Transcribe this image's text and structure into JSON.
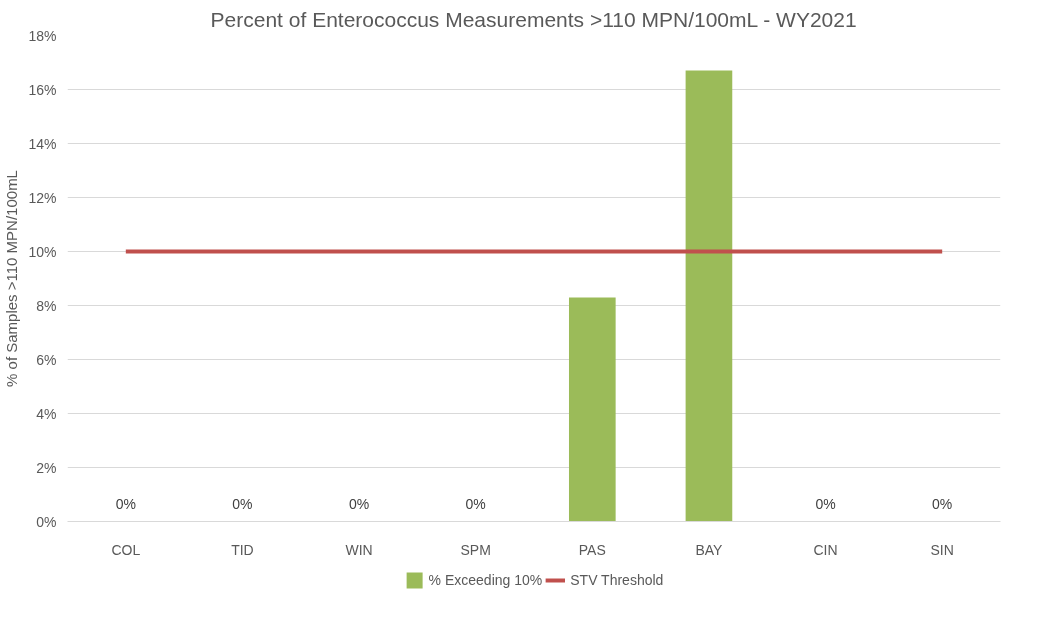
{
  "chart_data": {
    "type": "bar",
    "title": "Percent of Enterococcus Measurements >110 MPN/100mL - WY2021",
    "ylabel": "% of Samples >110 MPN/100mL",
    "categories": [
      "COL",
      "TID",
      "WIN",
      "SPM",
      "PAS",
      "BAY",
      "CIN",
      "SIN"
    ],
    "series": [
      {
        "name": "% Exceeding 10%",
        "color": "#9bbb59",
        "values": [
          0,
          0,
          0,
          0,
          8.3,
          16.7,
          0,
          0
        ],
        "value_labels": [
          "0%",
          "0%",
          "0%",
          "0%",
          null,
          null,
          "0%",
          "0%"
        ]
      },
      {
        "name": "STV Threshold",
        "type": "line",
        "color": "#c0504d",
        "values": [
          10,
          10,
          10,
          10,
          10,
          10,
          10,
          10
        ]
      }
    ],
    "ylim": [
      0,
      18
    ],
    "yticks": [
      {
        "value": 0,
        "label": "0%"
      },
      {
        "value": 2,
        "label": "2%"
      },
      {
        "value": 4,
        "label": "4%"
      },
      {
        "value": 6,
        "label": "6%"
      },
      {
        "value": 8,
        "label": "8%"
      },
      {
        "value": 10,
        "label": "10%"
      },
      {
        "value": 12,
        "label": "12%"
      },
      {
        "value": 14,
        "label": "14%"
      },
      {
        "value": 16,
        "label": "16%"
      },
      {
        "value": 18,
        "label": "18%"
      }
    ],
    "grid": "y",
    "legend": "bottom"
  }
}
